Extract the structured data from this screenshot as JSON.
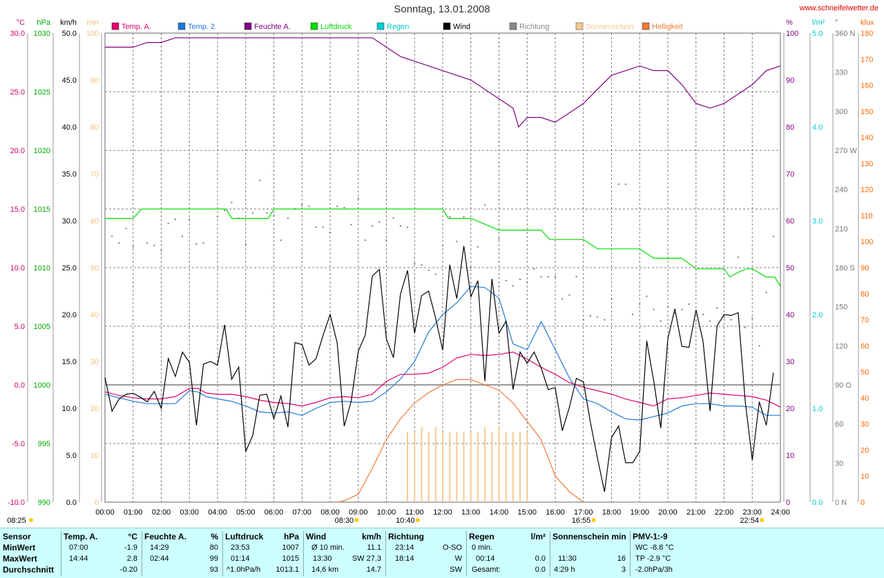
{
  "header": {
    "title": "Sonntag, 13.01.2008",
    "site": "www.schneifelwetter.de"
  },
  "axes": {
    "left": [
      {
        "unit": "°C",
        "color": "#cc0066",
        "ticks": [
          "30.0",
          "25.0",
          "20.0",
          "15.0",
          "10.0",
          "5.0",
          "0.0",
          "-5.0",
          "-10.0"
        ]
      },
      {
        "unit": "hPa",
        "color": "#00aa00",
        "ticks": [
          "1030",
          "1025",
          "1020",
          "1015",
          "1010",
          "1005",
          "1000",
          "995",
          "990"
        ]
      },
      {
        "unit": "km/h",
        "color": "#000000",
        "ticks": [
          "50.0",
          "45.0",
          "40.0",
          "35.0",
          "30.0",
          "25.0",
          "20.0",
          "15.0",
          "10.0",
          "5.0",
          "0.0"
        ]
      },
      {
        "unit": "min",
        "color": "#f0c080",
        "ticks": [
          "100",
          "90",
          "80",
          "70",
          "60",
          "50",
          "40",
          "30",
          "20",
          "10",
          "0"
        ]
      }
    ],
    "right": [
      {
        "unit": "%",
        "color": "#800080",
        "ticks": [
          "100",
          "90",
          "80",
          "70",
          "60",
          "50",
          "40",
          "30",
          "20",
          "10",
          "0"
        ]
      },
      {
        "unit": "l/m²",
        "color": "#00cccc",
        "ticks": [
          "5.0",
          "4.0",
          "3.0",
          "2.0",
          "1.0",
          "0.0"
        ]
      },
      {
        "unit": "°",
        "color": "#777777",
        "ticks": [
          "360 N",
          "330",
          "300",
          "270 W",
          "240",
          "210",
          "180 S",
          "150",
          "120",
          "90 O",
          "60",
          "30",
          "0 N"
        ]
      },
      {
        "unit": "klux",
        "color": "#ff6600",
        "ticks": [
          "180",
          "170",
          "160",
          "150",
          "140",
          "130",
          "120",
          "110",
          "100",
          "90",
          "80",
          "70",
          "60",
          "50",
          "40",
          "30",
          "20",
          "10",
          "0"
        ]
      }
    ],
    "x_ticks": [
      "00:00",
      "01:00",
      "02:00",
      "03:00",
      "04:00",
      "05:00",
      "06:00",
      "07:00",
      "08:00",
      "09:00",
      "10:00",
      "11:00",
      "12:00",
      "13:00",
      "14:00",
      "15:00",
      "16:00",
      "17:00",
      "18:00",
      "19:00",
      "20:00",
      "21:00",
      "22:00",
      "23:00",
      "24:00"
    ]
  },
  "legend": [
    {
      "label": "Temp. A.",
      "color": "#e0006a"
    },
    {
      "label": "Temp. 2",
      "color": "#1e78d8"
    },
    {
      "label": "Feuchte A.",
      "color": "#800080"
    },
    {
      "label": "Luftdruck",
      "color": "#00dd00"
    },
    {
      "label": "Regen",
      "color": "#00cccc"
    },
    {
      "label": "Wind",
      "color": "#000000"
    },
    {
      "label": "Richtung",
      "color": "#888888"
    },
    {
      "label": "Sonnenschein",
      "color": "#f8c890"
    },
    {
      "label": "Helligkeit",
      "color": "#f07838"
    }
  ],
  "sun_marks": [
    {
      "label": "08:25",
      "hour": 0
    },
    {
      "label": "08:30",
      "hour": 8.5
    },
    {
      "label": "10:40",
      "hour": 10.67
    },
    {
      "label": "16:55",
      "hour": 16.92
    },
    {
      "label": "22:54",
      "hour": 22.9
    }
  ],
  "chart_data": {
    "type": "line",
    "title": "Sonntag, 13.01.2008",
    "x_unit": "hour",
    "xlim": [
      0,
      24
    ],
    "series": [
      {
        "name": "Temp. A.",
        "unit": "°C",
        "ylim": [
          -10,
          30
        ],
        "color": "#e0006a",
        "x": [
          0,
          0.5,
          1,
          1.5,
          2,
          2.5,
          3,
          3.3,
          3.6,
          4,
          4.5,
          5,
          5.5,
          6,
          6.5,
          7,
          7.5,
          8,
          8.5,
          9,
          9.5,
          10,
          10.5,
          11,
          11.5,
          12,
          12.5,
          13,
          13.5,
          14,
          14.5,
          15,
          15.5,
          16,
          16.5,
          17,
          17.5,
          18,
          18.5,
          19,
          19.5,
          20,
          20.5,
          21,
          21.5,
          22,
          22.5,
          23,
          23.5,
          24
        ],
        "y": [
          -0.6,
          -0.9,
          -1.1,
          -1.2,
          -1.2,
          -1.0,
          -0.3,
          -0.3,
          -0.7,
          -0.8,
          -0.8,
          -1.0,
          -1.3,
          -1.5,
          -1.6,
          -1.8,
          -1.5,
          -1.1,
          -1.0,
          -1.1,
          -0.8,
          0.3,
          0.9,
          0.9,
          1.0,
          1.5,
          2.3,
          2.6,
          2.5,
          2.6,
          2.8,
          2.2,
          1.5,
          0.9,
          0.2,
          -0.2,
          -0.5,
          -0.8,
          -1.2,
          -1.5,
          -1.8,
          -1.2,
          -1.1,
          -0.9,
          -0.7,
          -0.8,
          -0.9,
          -1.0,
          -1.3,
          -1.9
        ]
      },
      {
        "name": "Temp. 2",
        "unit": "°C",
        "ylim": [
          -10,
          30
        ],
        "color": "#1e78d8",
        "x": [
          0,
          0.5,
          1,
          1.5,
          2,
          2.5,
          3,
          3.3,
          3.6,
          4,
          4.5,
          5,
          5.5,
          6,
          6.5,
          7,
          7.5,
          8,
          8.5,
          9,
          9.5,
          10,
          10.5,
          11,
          11.5,
          12,
          12.5,
          13,
          13.5,
          14,
          14.5,
          15,
          15.5,
          16,
          16.5,
          17,
          17.5,
          18,
          18.5,
          19,
          19.5,
          20,
          20.5,
          21,
          21.5,
          22,
          22.5,
          23,
          23.5,
          24
        ],
        "y": [
          -0.8,
          -1.1,
          -1.4,
          -1.6,
          -1.6,
          -1.6,
          -0.5,
          -0.6,
          -1.0,
          -1.2,
          -1.4,
          -1.8,
          -2.3,
          -2.4,
          -2.3,
          -2.6,
          -2.0,
          -1.5,
          -1.4,
          -1.5,
          -1.4,
          -0.6,
          0.5,
          2.0,
          4.5,
          6.0,
          7.0,
          8.4,
          8.3,
          7.4,
          3.5,
          3.0,
          5.4,
          3.0,
          0.6,
          -1.2,
          -1.6,
          -2.3,
          -2.9,
          -3.0,
          -2.7,
          -2.4,
          -1.8,
          -1.6,
          -1.6,
          -1.8,
          -1.8,
          -1.9,
          -2.6,
          -2.6
        ]
      },
      {
        "name": "Feuchte A.",
        "unit": "%",
        "ylim": [
          0,
          100
        ],
        "color": "#800080",
        "x": [
          0,
          0.5,
          1,
          1.5,
          2,
          2.5,
          3,
          3.5,
          4,
          4.5,
          5,
          5.5,
          6,
          6.5,
          7,
          7.5,
          8,
          8.5,
          9,
          9.5,
          10,
          10.5,
          11,
          11.5,
          12,
          12.5,
          13,
          13.5,
          14,
          14.5,
          14.7,
          15,
          15.5,
          16,
          16.5,
          17,
          17.5,
          18,
          18.5,
          19,
          19.5,
          20,
          20.5,
          21,
          21.5,
          22,
          22.5,
          23,
          23.5,
          24
        ],
        "y": [
          97,
          97,
          97,
          98,
          98,
          99,
          99,
          99,
          99,
          99,
          99,
          99,
          99,
          99,
          99,
          99,
          99,
          99,
          99,
          99,
          97,
          95,
          94,
          93,
          92,
          91,
          90,
          88,
          86,
          84,
          80,
          82,
          82,
          81,
          83,
          85,
          88,
          91,
          92,
          93,
          92,
          92,
          89,
          85,
          84,
          85,
          87,
          89,
          92,
          93
        ]
      },
      {
        "name": "Luftdruck",
        "unit": "hPa",
        "ylim": [
          990,
          1030
        ],
        "color": "#00dd00",
        "x": [
          0,
          1,
          1.3,
          4.3,
          4.5,
          5.8,
          6,
          9,
          12,
          12.2,
          13,
          13.5,
          14,
          14,
          15,
          15.5,
          15.8,
          17,
          17.5,
          18,
          18.5,
          19,
          19.5,
          20,
          20.5,
          21,
          21.5,
          22,
          22.2,
          22.5,
          22.8,
          23,
          23.5,
          23.8,
          24
        ],
        "y": [
          1014.2,
          1014.2,
          1015.0,
          1015.0,
          1014.2,
          1014.2,
          1015.0,
          1015.0,
          1015.0,
          1014.2,
          1014.2,
          1013.7,
          1013.2,
          1013.2,
          1013.2,
          1013.2,
          1012.4,
          1012.4,
          1011.6,
          1011.6,
          1011.6,
          1011.6,
          1010.8,
          1010.8,
          1010.8,
          1009.9,
          1009.9,
          1009.9,
          1009.2,
          1009.6,
          1009.9,
          1009.9,
          1009.2,
          1009.2,
          1008.4
        ]
      },
      {
        "name": "Wind",
        "unit": "km/h",
        "ylim": [
          0,
          50
        ],
        "color": "#000000",
        "x": [
          0,
          0.25,
          0.5,
          0.75,
          1,
          1.25,
          1.5,
          1.75,
          2,
          2.25,
          2.5,
          2.75,
          3,
          3.25,
          3.5,
          3.75,
          4,
          4.25,
          4.5,
          4.75,
          5,
          5.25,
          5.5,
          5.75,
          6,
          6.25,
          6.5,
          6.75,
          7,
          7.25,
          7.5,
          7.75,
          8,
          8.25,
          8.5,
          8.75,
          9,
          9.25,
          9.5,
          9.75,
          10,
          10.25,
          10.5,
          10.75,
          11,
          11.25,
          11.5,
          11.75,
          12,
          12.25,
          12.5,
          12.75,
          13,
          13.25,
          13.5,
          13.75,
          14,
          14.25,
          14.5,
          14.75,
          15,
          15.25,
          15.5,
          15.75,
          16,
          16.25,
          16.5,
          16.75,
          17,
          17.25,
          17.5,
          17.75,
          18,
          18.25,
          18.5,
          18.75,
          19,
          19.25,
          19.5,
          19.75,
          20,
          20.25,
          20.5,
          20.75,
          21,
          21.25,
          21.5,
          21.75,
          22,
          22.25,
          22.5,
          22.75,
          23,
          23.25,
          23.5,
          23.75,
          24
        ],
        "y": [
          13.3,
          9.7,
          11.0,
          11.5,
          11.6,
          11.2,
          10.7,
          11.8,
          10.0,
          15.3,
          13.4,
          16.0,
          14.9,
          8.2,
          14.7,
          15.0,
          14.6,
          18.9,
          13.1,
          14.4,
          5.4,
          7.1,
          11.4,
          11.5,
          8.9,
          11.3,
          8.0,
          17.0,
          16.8,
          14.6,
          15.3,
          17.8,
          20.0,
          17.0,
          8.1,
          10.8,
          16.1,
          17.8,
          24.1,
          24.8,
          17.4,
          15.4,
          22.2,
          24.7,
          18.0,
          22.0,
          22.5,
          19.6,
          16.2,
          25.3,
          21.7,
          27.3,
          21.9,
          23.6,
          12.9,
          23.8,
          18.0,
          19.3,
          12.0,
          16.0,
          14.8,
          16.0,
          14.3,
          12.0,
          12.2,
          7.6,
          10.1,
          13.2,
          12.8,
          8.5,
          4.7,
          1.1,
          6.9,
          8.1,
          4.2,
          4.2,
          5.4,
          17.2,
          12.9,
          7.9,
          17.4,
          20.6,
          16.6,
          16.5,
          20.5,
          17.2,
          9.7,
          18.8,
          20.0,
          19.9,
          20.2,
          10.7,
          4.5,
          10.7,
          8.2,
          13.8,
          null
        ]
      },
      {
        "name": "Richtung",
        "unit": "°",
        "ylim": [
          0,
          360
        ],
        "color": "#777777",
        "x": [
          0.25,
          0.5,
          0.75,
          1,
          1.5,
          1.75,
          2,
          2.25,
          2.5,
          2.75,
          3,
          3.25,
          3.5,
          4,
          4.25,
          4.5,
          4.75,
          5,
          5.25,
          5.5,
          5.75,
          6,
          6.25,
          6.5,
          6.75,
          7,
          7.25,
          7.5,
          7.75,
          8,
          8.25,
          8.5,
          8.75,
          9,
          9.25,
          9.5,
          9.75,
          10,
          10.25,
          10.5,
          10.75,
          11,
          11.25,
          11.5,
          11.75,
          12,
          12.25,
          12.5,
          12.75,
          13,
          13.25,
          13.5,
          13.75,
          14,
          14.25,
          14.5,
          14.75,
          15,
          15.25,
          15.5,
          15.75,
          16,
          16.25,
          16.5,
          16.75,
          17,
          17.25,
          17.5,
          17.75,
          18,
          18.25,
          18.5,
          18.75,
          19,
          19.25,
          19.5,
          19.75,
          20,
          20.25,
          20.5,
          20.75,
          21,
          21.25,
          21.5,
          21.75,
          22,
          22.25,
          22.5,
          22.75,
          23,
          23.25,
          23.5,
          23.75
        ],
        "y": [
          204,
          199,
          210,
          196,
          199,
          197,
          193,
          214,
          217,
          204,
          217,
          198,
          199,
          219,
          224,
          230,
          218,
          198,
          222,
          247,
          222,
          220,
          201,
          218,
          225,
          228,
          227,
          211,
          211,
          207,
          227,
          226,
          213,
          233,
          201,
          212,
          215,
          201,
          218,
          212,
          211,
          183,
          182,
          178,
          175,
          197,
          219,
          200,
          219,
          180,
          196,
          228,
          169,
          202,
          170,
          166,
          171,
          169,
          179,
          173,
          173,
          173,
          156,
          159,
          173,
          140,
          143,
          142,
          140,
          156,
          244,
          244,
          144,
          152,
          158,
          148,
          139,
          150,
          145,
          148,
          152,
          139,
          144,
          139,
          149,
          142,
          140,
          188,
          134,
          141,
          120,
          161,
          204
        ]
      },
      {
        "name": "Sonnenschein",
        "unit": "min",
        "ylim": [
          0,
          100
        ],
        "color": "#f8c890",
        "x": [
          10.75,
          11,
          11.25,
          11.5,
          11.75,
          12,
          12.25,
          12.5,
          12.75,
          13,
          13.25,
          13.5,
          13.75,
          14,
          14.25,
          14.5,
          14.75,
          15
        ],
        "y": [
          15,
          15,
          16,
          15,
          16,
          15,
          15,
          15,
          15,
          15,
          15,
          16,
          15,
          16,
          15,
          15,
          15,
          15
        ]
      },
      {
        "name": "Helligkeit",
        "unit": "klux",
        "ylim": [
          0,
          180
        ],
        "color": "#f07838",
        "x": [
          8.3,
          8.5,
          9,
          9.5,
          10,
          10.5,
          11,
          11.5,
          12,
          12.5,
          13,
          13.5,
          14,
          14.5,
          15,
          15.5,
          16,
          16.5,
          17
        ],
        "y": [
          0,
          0.5,
          3,
          13,
          24,
          32,
          38,
          42,
          45,
          47,
          47,
          45,
          43,
          38,
          31,
          24,
          10,
          4,
          0
        ]
      }
    ]
  },
  "stats": {
    "sensor": {
      "h": "Sensor",
      "rows": [
        "MinWert",
        "MaxWert",
        "Durchschnitt"
      ]
    },
    "temp": {
      "h": "Temp. A.",
      "unit": "°C",
      "t": [
        "07:00",
        "14:44",
        ""
      ],
      "v": [
        "-1.9",
        "2.8",
        "-0.20"
      ]
    },
    "feuchte": {
      "h": "Feuchte A.",
      "unit": "%",
      "t": [
        "14:29",
        "02:44",
        ""
      ],
      "v": [
        "80",
        "99",
        "93"
      ]
    },
    "druck": {
      "h": "Luftdruck",
      "unit": "hPa",
      "t": [
        "23:53",
        "01:14",
        "^1.0hPa/h"
      ],
      "v": [
        "1007",
        "1015",
        "1013.1"
      ]
    },
    "wind": {
      "h": "Wind",
      "unit": "km/h",
      "t": [
        "Ø 10 min.",
        "13:30",
        "14,6 km"
      ],
      "m": [
        "",
        "SW 27.3",
        ""
      ],
      "v": [
        "11.1",
        "",
        "14.7"
      ]
    },
    "richtung": {
      "h": "Richtung",
      "t": [
        "23:14",
        "18:14",
        ""
      ],
      "v": [
        "O-SO",
        "W",
        "SW"
      ]
    },
    "regen": {
      "h": "Regen",
      "unit": "l/m²",
      "t": [
        "0 min.",
        "00:14",
        "Gesamt:"
      ],
      "v": [
        "",
        "0.0",
        "0.0"
      ]
    },
    "sonne": {
      "h": "Sonnenschein min",
      "t": [
        "",
        "11:30",
        "4:29 h"
      ],
      "v": [
        "",
        "16",
        "3"
      ]
    },
    "pmv": {
      "h": "PMV-1:-9",
      "t": [
        "WC -8.8 °C",
        "TP -2.9 °C",
        "-2.0hPa/3h"
      ]
    }
  }
}
